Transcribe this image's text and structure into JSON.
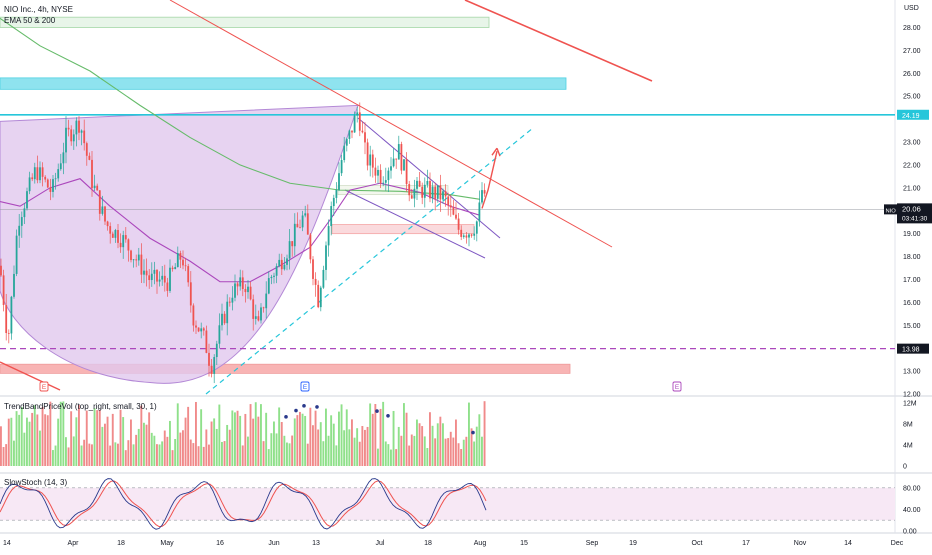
{
  "header": {
    "symbol_line": "NIO Inc., 4h, NYSE",
    "ema_label": "EMA 50 & 200"
  },
  "colors": {
    "up": "#26a69a",
    "down": "#ef5350",
    "vol_up": "#8fe08a",
    "vol_down": "#f08a8a",
    "ema50": "#ab47bc",
    "ema200": "#66bb6a",
    "cup_fill": "#e1c8ee",
    "cyan_zone": "#8fe3ef",
    "green_zone": "#e8f5e9",
    "red_zone": "#f8b4b4",
    "resistance": "#26c6da",
    "support_dash": "#ab47bc",
    "trend_red": "#ef5350",
    "dashed_cyan": "#26c6da",
    "stoch_bg": "#f7e8f5",
    "price_tag": "#131722"
  },
  "chart_data": [
    {
      "type": "candlestick",
      "title": "NIO Inc., 4h, NYSE",
      "currency": "USD",
      "ylim": [
        12.0,
        29.2
      ],
      "y_ticks": [
        "28.00",
        "27.00",
        "26.00",
        "25.00",
        "23.00",
        "22.00",
        "21.00",
        "19.00",
        "18.00",
        "17.00",
        "16.00",
        "15.00",
        "13.00",
        "12.00"
      ],
      "x_ticks": [
        "14",
        "Apr",
        "18",
        "May",
        "16",
        "Jun",
        "13",
        "Jul",
        "18",
        "Aug",
        "15",
        "Sep",
        "19",
        "Oct",
        "17",
        "Nov",
        "14",
        "Dec"
      ],
      "last_price": "20.06",
      "countdown": "03:41:30",
      "symbol_tag": "NIO",
      "levels": {
        "resistance": "24.19",
        "support": "13.98"
      },
      "indicators": [
        "EMA 50",
        "EMA 200"
      ],
      "zones": [
        {
          "name": "supply-upper",
          "from": 28.0,
          "to": 28.45
        },
        {
          "name": "supply-cyan",
          "from": 25.3,
          "to": 25.8
        },
        {
          "name": "demand-mid",
          "from": 19.0,
          "to": 19.4
        },
        {
          "name": "demand-low",
          "from": 12.9,
          "to": 13.3
        }
      ],
      "series": [
        {
          "name": "EMA 50 & 200",
          "values": []
        }
      ],
      "event_markers": [
        "E",
        "E",
        "E"
      ]
    },
    {
      "type": "bar",
      "title": "TrendBandPriceVol (top_right, small, 30, 1)",
      "y_ticks": [
        "12M",
        "8M",
        "4M",
        "0"
      ],
      "ylim": [
        0,
        13
      ]
    },
    {
      "type": "line",
      "title": "SlowStoch (14, 3)",
      "y_ticks": [
        "80.00",
        "40.00",
        "0.00"
      ],
      "ylim": [
        0,
        100
      ],
      "bands": [
        20,
        80
      ]
    }
  ]
}
